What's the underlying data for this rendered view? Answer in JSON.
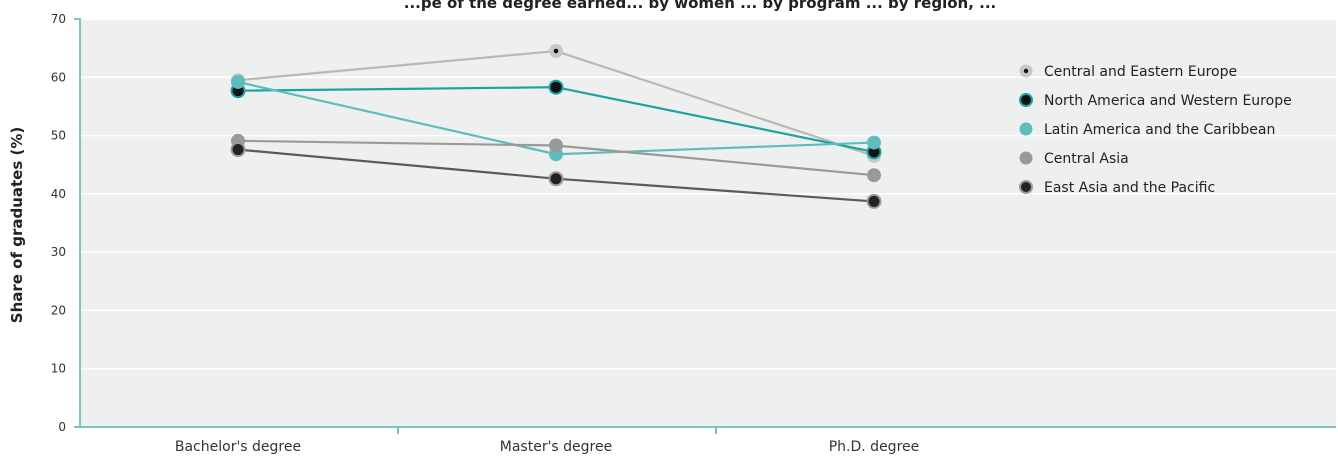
{
  "chart_data": {
    "type": "line",
    "title": "...pe of the degree earned... by women ... by program ... by region, ...",
    "xlabel": "",
    "ylabel": "Share of graduates (%)",
    "ylim": [
      0,
      70
    ],
    "yticks": [
      0,
      10,
      20,
      30,
      40,
      50,
      60,
      70
    ],
    "categories": [
      "Bachelor's degree",
      "Master's degree",
      "Ph.D. degree"
    ],
    "grid": true,
    "legend_position": "right",
    "series": [
      {
        "name": "Central and Eastern Europe",
        "values": [
          59.5,
          64.5,
          46.5
        ],
        "color": "#b8b8b8",
        "marker_fill": "#c8c8c8",
        "marker_dot": "#111111"
      },
      {
        "name": "North America and Western Europe",
        "values": [
          57.7,
          58.3,
          47.2
        ],
        "color": "#1aa3a3",
        "marker_fill": "#111111",
        "marker_ring": "#1aa3a3"
      },
      {
        "name": "Latin America and the Caribbean",
        "values": [
          59.2,
          46.8,
          48.8
        ],
        "color": "#5dbdbd",
        "marker_fill": "#5dbdbd"
      },
      {
        "name": "Central Asia",
        "values": [
          49.1,
          48.3,
          43.2
        ],
        "color": "#999999",
        "marker_fill": "#999999"
      },
      {
        "name": "East Asia and the Pacific",
        "values": [
          47.6,
          42.6,
          38.7
        ],
        "color": "#5a5a5a",
        "marker_fill": "#222222",
        "marker_ring": "#9a9a9a"
      }
    ],
    "colors": {
      "plot_bg": "#eef0ef",
      "axis": "#7cc4c4",
      "grid": "#ffffff"
    }
  }
}
